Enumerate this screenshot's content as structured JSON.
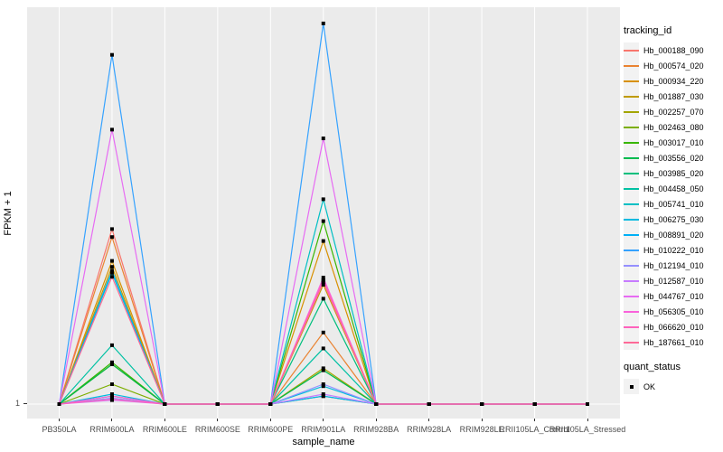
{
  "figure": {
    "y_axis_title": "FPKM + 1",
    "x_axis_title": "sample_name",
    "y_tick_labels": [
      "1"
    ],
    "colors": {
      "background": "#FFFFFF",
      "panel_bg": "#EBEBEB",
      "grid": "#FFFFFF",
      "tick": "#333333",
      "tick_label": "#4D4D4D",
      "point": "#000000",
      "legend_key_bg": "#F2F2F2"
    }
  },
  "legend": {
    "tracking_title": "tracking_id",
    "quant_title": "quant_status",
    "quant_items": [
      {
        "label": "OK"
      }
    ]
  },
  "chart_data": {
    "type": "line",
    "title": "",
    "xlabel": "sample_name",
    "ylabel": "FPKM + 1",
    "y_axis_note": "Only the value 1 is labeled on the y axis (baseline); series heights below are estimated fractions of full panel height above that baseline.",
    "grid": "white gridlines on gray panel, vertical line per category, horizontal line at y=1",
    "legend_position": "right",
    "categories": [
      "PB350LA",
      "RRIM600LA",
      "RRIM600LE",
      "RRIM600SE",
      "RRIM600PE",
      "RRIM901LA",
      "RRIM928BA",
      "RRIM928LA",
      "RRIM928LE",
      "RRII105LA_Control",
      "RRII105LA_Stressed"
    ],
    "point_marker": "black square (quant_status OK) at every sample for every series",
    "series": [
      {
        "name": "Hb_000188_090",
        "color": "#F8766D",
        "rel_heights": [
          0,
          0.44,
          0,
          0,
          0,
          0.31,
          0,
          0,
          0,
          0,
          0
        ]
      },
      {
        "name": "Hb_000574_020",
        "color": "#EA8331",
        "rel_heights": [
          0,
          0.42,
          0,
          0,
          0,
          0.18,
          0,
          0,
          0,
          0,
          0
        ]
      },
      {
        "name": "Hb_000934_220",
        "color": "#D89000",
        "rel_heights": [
          0,
          0.36,
          0,
          0,
          0,
          0.41,
          0,
          0,
          0,
          0,
          0
        ]
      },
      {
        "name": "Hb_001887_030",
        "color": "#C09B00",
        "rel_heights": [
          0,
          0.345,
          0,
          0,
          0,
          0.3,
          0,
          0,
          0,
          0,
          0
        ]
      },
      {
        "name": "Hb_002257_070",
        "color": "#A3A500",
        "rel_heights": [
          0,
          0.1,
          0,
          0,
          0,
          0.09,
          0,
          0,
          0,
          0,
          0
        ]
      },
      {
        "name": "Hb_002463_080",
        "color": "#7CAE00",
        "rel_heights": [
          0,
          0.05,
          0,
          0,
          0,
          0.02,
          0,
          0,
          0,
          0,
          0
        ]
      },
      {
        "name": "Hb_003017_010",
        "color": "#39B600",
        "rel_heights": [
          0,
          0.105,
          0,
          0,
          0,
          0.46,
          0,
          0,
          0,
          0,
          0
        ]
      },
      {
        "name": "Hb_003556_020",
        "color": "#00BB4E",
        "rel_heights": [
          0,
          0.1,
          0,
          0,
          0,
          0.085,
          0,
          0,
          0,
          0,
          0
        ]
      },
      {
        "name": "Hb_003985_020",
        "color": "#00BF7D",
        "rel_heights": [
          0,
          0.02,
          0,
          0,
          0,
          0.265,
          0,
          0,
          0,
          0,
          0
        ]
      },
      {
        "name": "Hb_004458_050",
        "color": "#00C1A3",
        "rel_heights": [
          0,
          0.148,
          0,
          0,
          0,
          0.14,
          0,
          0,
          0,
          0,
          0
        ]
      },
      {
        "name": "Hb_005741_010",
        "color": "#00BFC4",
        "rel_heights": [
          0,
          0.33,
          0,
          0,
          0,
          0.515,
          0,
          0,
          0,
          0,
          0
        ]
      },
      {
        "name": "Hb_006275_030",
        "color": "#00BAE0",
        "rel_heights": [
          0,
          0.025,
          0,
          0,
          0,
          0.045,
          0,
          0,
          0,
          0,
          0
        ]
      },
      {
        "name": "Hb_008891_020",
        "color": "#00B0F6",
        "rel_heights": [
          0,
          0.335,
          0,
          0,
          0,
          0.02,
          0,
          0,
          0,
          0,
          0
        ]
      },
      {
        "name": "Hb_010222_010",
        "color": "#35A2FF",
        "rel_heights": [
          0,
          0.878,
          0,
          0,
          0,
          0.957,
          0,
          0,
          0,
          0,
          0
        ]
      },
      {
        "name": "Hb_012194_010",
        "color": "#9590FF",
        "rel_heights": [
          0,
          0.015,
          0,
          0,
          0,
          0.05,
          0,
          0,
          0,
          0,
          0
        ]
      },
      {
        "name": "Hb_012587_010",
        "color": "#C77CFF",
        "rel_heights": [
          0,
          0.01,
          0,
          0,
          0,
          0.025,
          0,
          0,
          0,
          0,
          0
        ]
      },
      {
        "name": "Hb_044767_010",
        "color": "#E76BF3",
        "rel_heights": [
          0,
          0.69,
          0,
          0,
          0,
          0.668,
          0,
          0,
          0,
          0,
          0
        ]
      },
      {
        "name": "Hb_056305_010",
        "color": "#FA62DB",
        "rel_heights": [
          0,
          0.02,
          0,
          0,
          0,
          0.318,
          0,
          0,
          0,
          0,
          0
        ]
      },
      {
        "name": "Hb_066620_010",
        "color": "#FF62BC",
        "rel_heights": [
          0,
          0.012,
          0,
          0,
          0,
          0.312,
          0,
          0,
          0,
          0,
          0
        ]
      },
      {
        "name": "Hb_187661_010",
        "color": "#FF6A98",
        "rel_heights": [
          0,
          0.32,
          0,
          0,
          0,
          0.306,
          0,
          0,
          0,
          0,
          0
        ]
      }
    ]
  }
}
